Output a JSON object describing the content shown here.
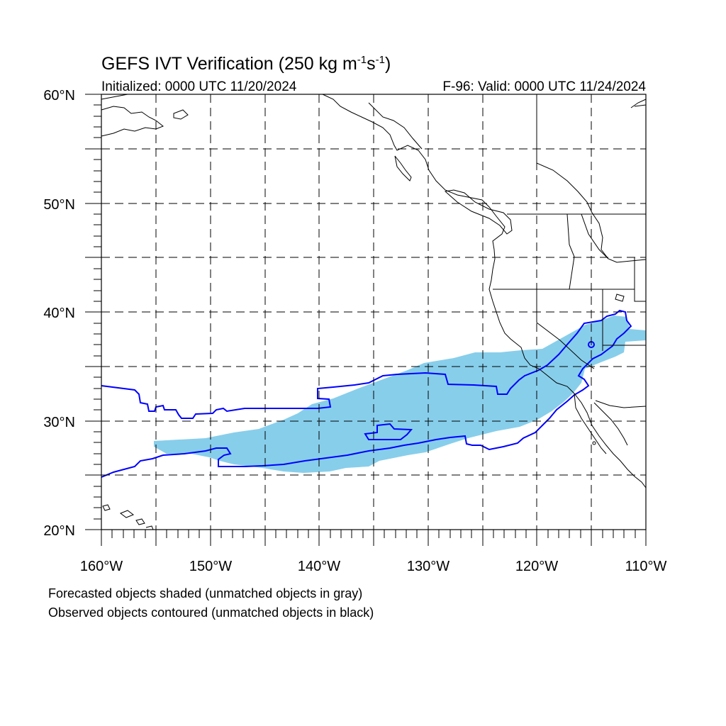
{
  "title": {
    "main": "GEFS IVT Verification (250 kg m",
    "exp1": "-1",
    "mid": "s",
    "exp2": "-1",
    "close": ")"
  },
  "subtitle_left": "Initialized: 0000 UTC 11/20/2024",
  "subtitle_right": "F-96: Valid: 0000 UTC 11/24/2024",
  "lat_labels": [
    "60°N",
    "50°N",
    "40°N",
    "30°N",
    "20°N"
  ],
  "lon_labels": [
    "160°W",
    "150°W",
    "140°W",
    "130°W",
    "120°W",
    "110°W"
  ],
  "legend": {
    "line1": "Forecasted objects shaded (unmatched objects in gray)",
    "line2": "Observed objects contoured (unmatched objects in black)"
  },
  "map_extent": {
    "lon_min": -160,
    "lon_max": -110,
    "lat_min": 20,
    "lat_max": 60
  },
  "colors": {
    "forecast_fill": "#87ceeb",
    "observed_contour": "#0000ff",
    "coastline": "#000000",
    "grid": "#000000"
  }
}
